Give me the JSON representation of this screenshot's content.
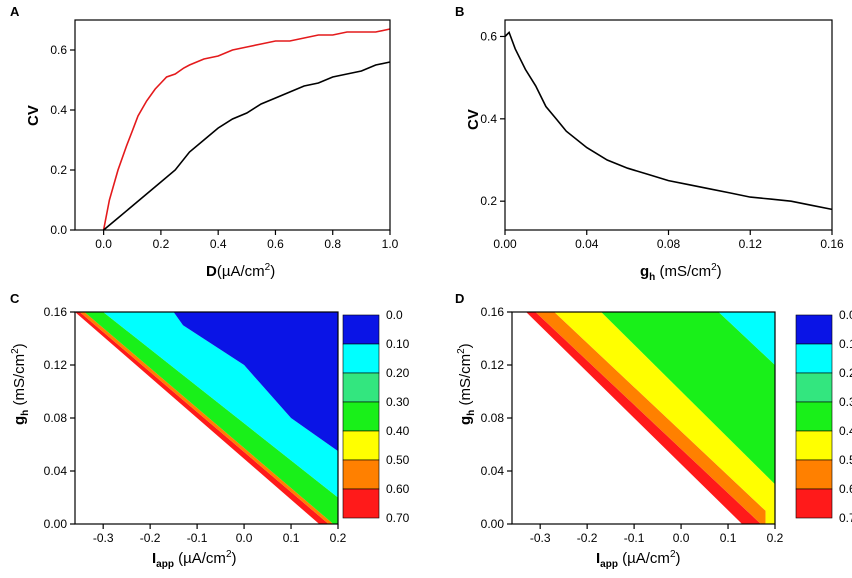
{
  "chart_data": [
    {
      "panel": "A",
      "type": "line",
      "xlabel": "D",
      "xlabel_unit": "(µA/cm",
      "xlabel_sup": "2",
      "xlabel_close": ")",
      "ylabel": "CV",
      "xlim": [
        -0.1,
        1.0
      ],
      "ylim": [
        0,
        0.7
      ],
      "xticks": [
        0.0,
        0.2,
        0.4,
        0.6,
        0.8,
        1.0
      ],
      "xticklabels": [
        "0.0",
        "0.2",
        "0.4",
        "0.6",
        "0.8",
        "1.0"
      ],
      "yticks": [
        0.0,
        0.2,
        0.4,
        0.6
      ],
      "yticklabels": [
        "0.0",
        "0.2",
        "0.4",
        "0.6"
      ],
      "series": [
        {
          "name": "red",
          "color": "#e41a1c",
          "x": [
            0.0,
            0.02,
            0.05,
            0.08,
            0.1,
            0.12,
            0.15,
            0.18,
            0.2,
            0.22,
            0.25,
            0.28,
            0.3,
            0.35,
            0.4,
            0.45,
            0.5,
            0.55,
            0.6,
            0.65,
            0.7,
            0.75,
            0.8,
            0.85,
            0.9,
            0.95,
            1.0
          ],
          "y": [
            0.0,
            0.1,
            0.2,
            0.28,
            0.33,
            0.38,
            0.43,
            0.47,
            0.49,
            0.51,
            0.52,
            0.54,
            0.55,
            0.57,
            0.58,
            0.6,
            0.61,
            0.62,
            0.63,
            0.63,
            0.64,
            0.65,
            0.65,
            0.66,
            0.66,
            0.66,
            0.67
          ]
        },
        {
          "name": "black",
          "color": "#000000",
          "x": [
            0.0,
            0.05,
            0.1,
            0.15,
            0.2,
            0.25,
            0.3,
            0.35,
            0.4,
            0.45,
            0.5,
            0.55,
            0.6,
            0.65,
            0.7,
            0.75,
            0.8,
            0.85,
            0.9,
            0.95,
            1.0
          ],
          "y": [
            0.0,
            0.04,
            0.08,
            0.12,
            0.16,
            0.2,
            0.26,
            0.3,
            0.34,
            0.37,
            0.39,
            0.42,
            0.44,
            0.46,
            0.48,
            0.49,
            0.51,
            0.52,
            0.53,
            0.55,
            0.56
          ]
        }
      ]
    },
    {
      "panel": "B",
      "type": "line",
      "xlabel": "g",
      "xlabel_sub": "h",
      "xlabel_unit": " (mS/cm",
      "xlabel_sup": "2",
      "xlabel_close": ")",
      "ylabel": "CV",
      "xlim": [
        0,
        0.16
      ],
      "ylim": [
        0.13,
        0.64
      ],
      "xticks": [
        0.0,
        0.04,
        0.08,
        0.12,
        0.16
      ],
      "xticklabels": [
        "0.00",
        "0.04",
        "0.08",
        "0.12",
        "0.16"
      ],
      "yticks": [
        0.2,
        0.4,
        0.6
      ],
      "yticklabels": [
        "0.2",
        "0.4",
        "0.6"
      ],
      "series": [
        {
          "name": "CV",
          "color": "#000000",
          "x": [
            0.0,
            0.002,
            0.005,
            0.01,
            0.015,
            0.02,
            0.025,
            0.03,
            0.04,
            0.05,
            0.06,
            0.07,
            0.08,
            0.09,
            0.1,
            0.11,
            0.12,
            0.13,
            0.14,
            0.15,
            0.16
          ],
          "y": [
            0.6,
            0.61,
            0.57,
            0.52,
            0.48,
            0.43,
            0.4,
            0.37,
            0.33,
            0.3,
            0.28,
            0.265,
            0.25,
            0.24,
            0.23,
            0.22,
            0.21,
            0.205,
            0.2,
            0.19,
            0.18
          ]
        }
      ]
    },
    {
      "panel": "C",
      "type": "heatmap",
      "xlabel": "I",
      "xlabel_sub": "app",
      "xlabel_unit": " (µA/cm",
      "xlabel_sup": "2",
      "xlabel_close": ")",
      "ylabel": "g",
      "ylabel_sub": "h",
      "ylabel_unit": " (mS/cm",
      "ylabel_sup": "2",
      "ylabel_close": ")",
      "xlim": [
        -0.36,
        0.2
      ],
      "ylim": [
        0,
        0.16
      ],
      "xticks": [
        -0.3,
        -0.2,
        -0.1,
        0.0,
        0.1,
        0.2
      ],
      "xticklabels": [
        "-0.3",
        "-0.2",
        "-0.1",
        "0.0",
        "0.1",
        "0.2"
      ],
      "yticks": [
        0.0,
        0.04,
        0.08,
        0.12,
        0.16
      ],
      "yticklabels": [
        "0.00",
        "0.04",
        "0.08",
        "0.12",
        "0.16"
      ],
      "regions": [
        {
          "level": "0.60",
          "polygon": [
            [
              -0.36,
              0.16
            ],
            [
              -0.35,
              0.16
            ],
            [
              0.18,
              0.0
            ],
            [
              0.16,
              0.0
            ]
          ]
        },
        {
          "level": "0.50",
          "polygon": [
            [
              -0.35,
              0.16
            ],
            [
              -0.34,
              0.16
            ],
            [
              0.19,
              0.0
            ],
            [
              0.18,
              0.0
            ]
          ]
        },
        {
          "level": "0.30",
          "polygon": [
            [
              -0.34,
              0.16
            ],
            [
              -0.3,
              0.16
            ],
            [
              0.2,
              0.02
            ],
            [
              0.2,
              0.0
            ],
            [
              0.19,
              0.0
            ]
          ]
        },
        {
          "level": "0.10",
          "polygon": [
            [
              -0.3,
              0.16
            ],
            [
              -0.15,
              0.16
            ],
            [
              -0.13,
              0.15
            ],
            [
              0.0,
              0.12
            ],
            [
              0.1,
              0.08
            ],
            [
              0.2,
              0.055
            ],
            [
              0.2,
              0.02
            ]
          ]
        },
        {
          "level": "0.0",
          "polygon": [
            [
              -0.15,
              0.16
            ],
            [
              0.2,
              0.16
            ],
            [
              0.2,
              0.055
            ],
            [
              0.1,
              0.08
            ],
            [
              0.0,
              0.12
            ],
            [
              -0.13,
              0.15
            ]
          ]
        }
      ]
    },
    {
      "panel": "D",
      "type": "heatmap",
      "xlabel": "I",
      "xlabel_sub": "app",
      "xlabel_unit": " (µA/cm",
      "xlabel_sup": "2",
      "xlabel_close": ")",
      "ylabel": "g",
      "ylabel_sub": "h",
      "ylabel_unit": " (mS/cm",
      "ylabel_sup": "2",
      "ylabel_close": ")",
      "xlim": [
        -0.36,
        0.2
      ],
      "ylim": [
        0,
        0.16
      ],
      "xticks": [
        -0.3,
        -0.2,
        -0.1,
        0.0,
        0.1,
        0.2
      ],
      "xticklabels": [
        "-0.3",
        "-0.2",
        "-0.1",
        "0.0",
        "0.1",
        "0.2"
      ],
      "yticks": [
        0.0,
        0.04,
        0.08,
        0.12,
        0.16
      ],
      "yticklabels": [
        "0.00",
        "0.04",
        "0.08",
        "0.12",
        "0.16"
      ],
      "regions": [
        {
          "level": "0.60",
          "polygon": [
            [
              -0.33,
              0.16
            ],
            [
              -0.31,
              0.16
            ],
            [
              0.17,
              0.0
            ],
            [
              0.13,
              0.0
            ]
          ]
        },
        {
          "level": "0.50",
          "polygon": [
            [
              -0.31,
              0.16
            ],
            [
              -0.27,
              0.16
            ],
            [
              0.18,
              0.01
            ],
            [
              0.18,
              0.0
            ],
            [
              0.17,
              0.0
            ]
          ]
        },
        {
          "level": "0.40",
          "polygon": [
            [
              -0.27,
              0.16
            ],
            [
              -0.17,
              0.16
            ],
            [
              0.2,
              0.03
            ],
            [
              0.2,
              0.0
            ],
            [
              0.18,
              0.0
            ],
            [
              0.18,
              0.01
            ]
          ]
        },
        {
          "level": "0.30",
          "polygon": [
            [
              -0.17,
              0.16
            ],
            [
              0.08,
              0.16
            ],
            [
              0.2,
              0.12
            ],
            [
              0.2,
              0.03
            ]
          ]
        },
        {
          "level": "0.10",
          "polygon": [
            [
              0.08,
              0.16
            ],
            [
              0.2,
              0.16
            ],
            [
              0.2,
              0.12
            ]
          ]
        }
      ]
    }
  ],
  "colorbar": {
    "labels": [
      "0.0",
      "0.10",
      "0.20",
      "0.30",
      "0.40",
      "0.50",
      "0.60",
      "0.70"
    ],
    "colors": [
      "#0a14e6",
      "#00ffff",
      "#33e67f",
      "#19f019",
      "#ffff00",
      "#ff8000",
      "#ff1a1a"
    ]
  },
  "level_colors": {
    "0.0": "#0a14e6",
    "0.10": "#00ffff",
    "0.20": "#33e67f",
    "0.30": "#19f019",
    "0.40": "#ffff00",
    "0.50": "#ff8000",
    "0.60": "#ff1a1a"
  }
}
